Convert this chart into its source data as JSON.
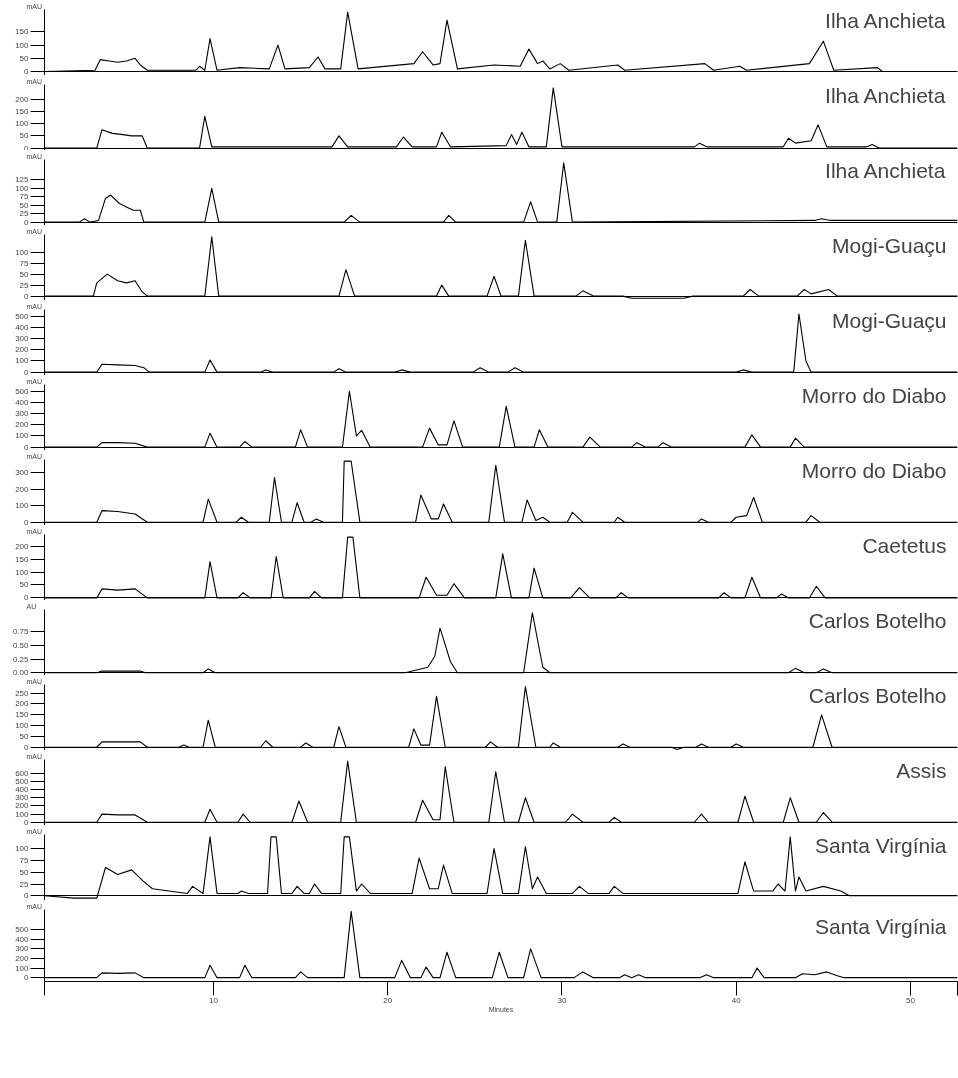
{
  "chart_data": [
    {
      "type": "line",
      "title": "Ilha Anchieta",
      "ylabel": "mAU",
      "xlim": [
        0.3,
        52.7
      ],
      "ylim": [
        -15,
        235
      ],
      "yticks": [
        0,
        50,
        100,
        150
      ],
      "tick_labels": "y",
      "color": "#000000",
      "x": [
        0.3,
        3.2,
        3.5,
        4.0,
        4.5,
        5.0,
        5.5,
        5.8,
        6.2,
        9.0,
        9.2,
        9.5,
        9.8,
        10.2,
        11.5,
        13.2,
        13.7,
        14.1,
        15.5,
        16.0,
        16.4,
        17.3,
        17.7,
        18.3,
        21.5,
        22.0,
        22.6,
        23.0,
        23.4,
        24.0,
        26.1,
        27.6,
        28.1,
        28.6,
        28.9,
        29.3,
        29.9,
        30.4,
        33.2,
        33.6,
        38.2,
        38.7,
        40.2,
        40.6,
        44.2,
        45.0,
        45.6,
        48.1,
        48.4,
        52.7
      ],
      "values": [
        0,
        5,
        45,
        40,
        35,
        40,
        50,
        25,
        5,
        5,
        20,
        5,
        125,
        5,
        15,
        10,
        100,
        10,
        15,
        55,
        10,
        10,
        225,
        10,
        30,
        75,
        25,
        30,
        195,
        10,
        25,
        20,
        85,
        30,
        40,
        10,
        30,
        5,
        25,
        5,
        30,
        5,
        20,
        5,
        30,
        115,
        5,
        15,
        0,
        0
      ]
    },
    {
      "type": "line",
      "title": "Ilha Anchieta",
      "ylabel": "mAU",
      "xlim": [
        0.3,
        52.7
      ],
      "ylim": [
        -10,
        260
      ],
      "yticks": [
        0,
        50,
        100,
        150,
        200
      ],
      "tick_labels": "y",
      "color": "#000000",
      "x": [
        0.3,
        3.3,
        3.6,
        4.2,
        4.8,
        5.3,
        5.9,
        6.2,
        9.2,
        9.5,
        9.9,
        16.8,
        17.2,
        17.7,
        20.5,
        20.9,
        21.4,
        22.8,
        23.1,
        23.6,
        26.8,
        27.1,
        27.4,
        27.7,
        28.1,
        29.1,
        29.5,
        30.0,
        37.6,
        37.9,
        38.3,
        42.7,
        43.0,
        43.4,
        44.3,
        44.7,
        45.2,
        47.5,
        47.8,
        48.2,
        52.7
      ],
      "values": [
        0,
        0,
        75,
        60,
        55,
        50,
        50,
        0,
        0,
        130,
        5,
        5,
        50,
        5,
        5,
        45,
        5,
        5,
        65,
        5,
        10,
        55,
        15,
        65,
        5,
        5,
        246,
        5,
        5,
        20,
        5,
        5,
        40,
        20,
        30,
        95,
        5,
        5,
        15,
        0,
        0
      ]
    },
    {
      "type": "line",
      "title": "Ilha Anchieta",
      "ylabel": "mAU",
      "xlim": [
        0.3,
        52.7
      ],
      "ylim": [
        -10,
        185
      ],
      "yticks": [
        0,
        25,
        50,
        75,
        100,
        125
      ],
      "tick_labels": "y",
      "color": "#000000",
      "x": [
        0.3,
        2.3,
        2.6,
        2.9,
        3.4,
        3.8,
        4.1,
        4.6,
        5.0,
        5.4,
        5.8,
        6.0,
        9.5,
        9.9,
        10.3,
        17.5,
        17.9,
        18.4,
        23.2,
        23.5,
        23.9,
        27.8,
        28.2,
        28.6,
        29.7,
        30.1,
        30.6,
        44.5,
        44.9,
        45.4,
        52.7
      ],
      "values": [
        0,
        0,
        10,
        0,
        5,
        70,
        80,
        55,
        45,
        35,
        35,
        0,
        0,
        100,
        0,
        0,
        20,
        0,
        0,
        20,
        0,
        0,
        60,
        0,
        0,
        175,
        0,
        5,
        10,
        5,
        5
      ]
    },
    {
      "type": "line",
      "title": "Mogi-Guaçu",
      "ylabel": "mAU",
      "xlim": [
        0.3,
        52.7
      ],
      "ylim": [
        -10,
        140
      ],
      "yticks": [
        0,
        25,
        50,
        75,
        100
      ],
      "tick_labels": "y",
      "color": "#000000",
      "x": [
        0.3,
        3.1,
        3.3,
        3.9,
        4.5,
        5.0,
        5.5,
        5.9,
        6.2,
        9.5,
        9.9,
        10.3,
        17.2,
        17.6,
        18.1,
        22.8,
        23.1,
        23.5,
        25.7,
        26.1,
        26.5,
        27.5,
        27.9,
        28.4,
        30.8,
        31.2,
        31.8,
        33.5,
        34.0,
        37.0,
        37.5,
        40.4,
        40.8,
        41.3,
        43.5,
        43.9,
        44.3,
        45.3,
        45.8,
        52.7
      ],
      "values": [
        0,
        0,
        30,
        50,
        35,
        30,
        35,
        10,
        0,
        0,
        135,
        0,
        0,
        60,
        0,
        0,
        25,
        0,
        0,
        45,
        0,
        0,
        127,
        0,
        0,
        12,
        0,
        0,
        -5,
        -5,
        0,
        0,
        15,
        0,
        0,
        15,
        5,
        15,
        0,
        0
      ]
    },
    {
      "type": "line",
      "title": "Mogi-Guaçu",
      "ylabel": "mAU",
      "xlim": [
        0.3,
        52.7
      ],
      "ylim": [
        -30,
        560
      ],
      "yticks": [
        0,
        100,
        200,
        300,
        400,
        500
      ],
      "tick_labels": "y",
      "color": "#000000",
      "x": [
        0.3,
        3.3,
        3.6,
        4.5,
        5.5,
        6.0,
        6.3,
        9.5,
        9.8,
        10.2,
        12.7,
        13.0,
        13.4,
        16.9,
        17.2,
        17.6,
        20.4,
        20.8,
        21.3,
        24.9,
        25.3,
        25.8,
        26.9,
        27.3,
        27.8,
        40.0,
        40.4,
        40.9,
        43.3,
        43.6,
        44.0,
        44.3,
        52.7
      ],
      "values": [
        0,
        0,
        70,
        65,
        60,
        40,
        0,
        0,
        108,
        0,
        0,
        20,
        0,
        0,
        30,
        0,
        0,
        20,
        0,
        0,
        40,
        0,
        0,
        40,
        0,
        0,
        20,
        0,
        0,
        520,
        100,
        0,
        0
      ]
    },
    {
      "type": "line",
      "title": "Morro do Diabo",
      "ylabel": "mAU",
      "xlim": [
        0.3,
        52.7
      ],
      "ylim": [
        -30,
        560
      ],
      "yticks": [
        0,
        100,
        200,
        300,
        400,
        500
      ],
      "tick_labels": "y",
      "color": "#000000",
      "x": [
        0.3,
        3.3,
        3.6,
        4.5,
        5.5,
        6.2,
        9.5,
        9.8,
        10.2,
        11.5,
        11.8,
        12.2,
        14.7,
        15.0,
        15.4,
        17.4,
        17.8,
        18.2,
        18.5,
        19.0,
        22.0,
        22.4,
        22.9,
        23.4,
        23.8,
        24.3,
        26.4,
        26.8,
        27.3,
        28.4,
        28.7,
        29.2,
        31.2,
        31.6,
        32.2,
        34.0,
        34.3,
        34.8,
        35.5,
        35.8,
        36.3,
        40.5,
        40.9,
        41.4,
        43.1,
        43.4,
        43.9,
        52.7
      ],
      "values": [
        0,
        0,
        40,
        40,
        35,
        0,
        0,
        125,
        0,
        0,
        50,
        0,
        0,
        155,
        0,
        0,
        500,
        100,
        150,
        0,
        0,
        170,
        20,
        20,
        235,
        0,
        0,
        365,
        0,
        0,
        155,
        0,
        0,
        90,
        0,
        0,
        40,
        0,
        0,
        40,
        0,
        0,
        110,
        0,
        0,
        80,
        0,
        0
      ]
    },
    {
      "type": "line",
      "title": "Morro do Diabo",
      "ylabel": "mAU",
      "xlim": [
        0.3,
        52.7
      ],
      "ylim": [
        -20,
        380
      ],
      "yticks": [
        0,
        100,
        200,
        300
      ],
      "tick_labels": "y",
      "color": "#000000",
      "x": [
        0.3,
        3.3,
        3.6,
        4.5,
        5.5,
        6.2,
        9.4,
        9.7,
        10.2,
        11.3,
        11.6,
        12.0,
        13.2,
        13.5,
        13.9,
        14.5,
        14.8,
        15.2,
        15.6,
        15.9,
        16.3,
        17.4,
        17.5,
        17.9,
        18.4,
        21.6,
        21.9,
        22.5,
        22.9,
        23.2,
        23.7,
        25.8,
        26.2,
        26.7,
        27.7,
        28.0,
        28.5,
        28.9,
        29.3,
        30.3,
        30.6,
        31.2,
        33.0,
        33.2,
        33.6,
        37.8,
        38.0,
        38.4,
        39.7,
        40.0,
        40.6,
        41.0,
        41.5,
        44.0,
        44.3,
        44.8,
        52.7
      ],
      "values": [
        0,
        0,
        70,
        65,
        50,
        0,
        0,
        140,
        0,
        0,
        30,
        0,
        0,
        270,
        0,
        0,
        118,
        0,
        0,
        20,
        0,
        0,
        370,
        370,
        0,
        0,
        165,
        20,
        20,
        110,
        0,
        0,
        345,
        0,
        0,
        135,
        10,
        30,
        0,
        0,
        60,
        0,
        0,
        30,
        0,
        0,
        20,
        0,
        0,
        30,
        40,
        150,
        0,
        0,
        40,
        0,
        0
      ]
    },
    {
      "type": "line",
      "title": "Caetetus",
      "ylabel": "mAU",
      "xlim": [
        0.3,
        52.7
      ],
      "ylim": [
        -10,
        245
      ],
      "yticks": [
        0,
        50,
        100,
        150,
        200
      ],
      "tick_labels": "y",
      "color": "#000000",
      "x": [
        0.3,
        3.3,
        3.6,
        4.5,
        5.5,
        6.2,
        9.5,
        9.8,
        10.2,
        11.4,
        11.7,
        12.1,
        13.3,
        13.6,
        14.0,
        15.5,
        15.8,
        16.2,
        17.4,
        17.7,
        18.0,
        18.4,
        21.8,
        22.2,
        22.8,
        23.4,
        23.8,
        24.4,
        26.2,
        26.6,
        27.1,
        28.1,
        28.4,
        28.9,
        30.5,
        31.0,
        31.6,
        33.1,
        33.4,
        33.8,
        39.0,
        39.3,
        39.7,
        40.5,
        40.9,
        41.4,
        42.3,
        42.6,
        43.0,
        44.2,
        44.6,
        45.1,
        52.7
      ],
      "values": [
        0,
        0,
        35,
        30,
        35,
        0,
        0,
        140,
        0,
        0,
        20,
        0,
        0,
        160,
        0,
        0,
        25,
        0,
        0,
        235,
        235,
        0,
        0,
        80,
        10,
        10,
        55,
        0,
        0,
        170,
        0,
        0,
        115,
        0,
        0,
        40,
        0,
        0,
        20,
        0,
        0,
        20,
        0,
        0,
        80,
        0,
        0,
        15,
        0,
        0,
        45,
        0,
        0
      ]
    },
    {
      "type": "line",
      "title": "Carlos Botelho",
      "ylabel": "AU",
      "xlim": [
        0.3,
        52.7
      ],
      "ylim": [
        -0.05,
        1.15
      ],
      "yticks": [
        {
          "value": 0,
          "label": "0.00"
        },
        {
          "value": 0.25,
          "label": "0.25"
        },
        {
          "value": 0.5,
          "label": "0.50"
        },
        {
          "value": 0.75,
          "label": "0.75"
        }
      ],
      "tick_labels": "y",
      "color": "#000000",
      "x": [
        0.3,
        3.3,
        3.6,
        5.8,
        6.1,
        9.4,
        9.7,
        10.1,
        21.0,
        22.3,
        22.7,
        23.0,
        23.6,
        24.0,
        27.8,
        28.3,
        28.9,
        29.3,
        43.0,
        43.4,
        43.9,
        44.6,
        45.0,
        45.5,
        52.7
      ],
      "values": [
        0,
        0,
        0.03,
        0.03,
        0,
        0,
        0.07,
        0,
        0,
        0.1,
        0.3,
        0.81,
        0.2,
        0,
        0,
        1.09,
        0.1,
        0,
        0,
        0.08,
        0,
        0,
        0.07,
        0,
        0
      ]
    },
    {
      "type": "line",
      "title": "Carlos Botelho",
      "ylabel": "mAU",
      "xlim": [
        0.3,
        52.7
      ],
      "ylim": [
        -15,
        290
      ],
      "yticks": [
        0,
        50,
        100,
        150,
        200,
        250
      ],
      "tick_labels": "y",
      "color": "#000000",
      "x": [
        0.3,
        3.3,
        3.6,
        5.8,
        6.2,
        8.0,
        8.3,
        8.6,
        9.4,
        9.7,
        10.1,
        12.7,
        13.0,
        13.4,
        15.0,
        15.3,
        15.7,
        16.9,
        17.2,
        17.6,
        21.2,
        21.5,
        21.9,
        22.4,
        22.8,
        23.3,
        25.6,
        25.9,
        26.3,
        27.5,
        27.9,
        28.5,
        29.3,
        29.5,
        29.9,
        33.2,
        33.5,
        33.9,
        36.3,
        36.6,
        37.0,
        37.7,
        38.0,
        38.4,
        39.7,
        40.0,
        40.4,
        44.4,
        44.9,
        45.5,
        52.7
      ],
      "values": [
        0,
        0,
        25,
        25,
        0,
        0,
        10,
        0,
        0,
        125,
        0,
        0,
        30,
        0,
        0,
        20,
        0,
        0,
        95,
        0,
        0,
        85,
        10,
        10,
        235,
        0,
        0,
        25,
        0,
        0,
        280,
        0,
        0,
        20,
        0,
        0,
        15,
        0,
        0,
        -10,
        0,
        0,
        15,
        0,
        0,
        15,
        0,
        0,
        150,
        0,
        0
      ]
    },
    {
      "type": "line",
      "title": "Assis",
      "ylabel": "mAU",
      "xlim": [
        0.3,
        52.7
      ],
      "ylim": [
        -40,
        770
      ],
      "yticks": [
        0,
        100,
        200,
        300,
        400,
        500,
        600
      ],
      "tick_labels": "y",
      "color": "#000000",
      "x": [
        0.3,
        3.3,
        3.6,
        4.5,
        5.5,
        6.2,
        9.5,
        9.8,
        10.2,
        11.4,
        11.7,
        12.1,
        14.5,
        14.9,
        15.4,
        17.3,
        17.7,
        18.2,
        21.6,
        22.0,
        22.6,
        23.0,
        23.3,
        23.8,
        25.8,
        26.2,
        26.7,
        27.5,
        27.9,
        28.4,
        30.2,
        30.6,
        31.2,
        32.7,
        33.0,
        33.4,
        37.6,
        38.0,
        38.4,
        40.1,
        40.5,
        41.0,
        42.7,
        43.1,
        43.6,
        44.6,
        45.0,
        45.5,
        52.7
      ],
      "values": [
        0,
        0,
        100,
        90,
        90,
        0,
        0,
        160,
        0,
        0,
        100,
        0,
        0,
        260,
        0,
        0,
        750,
        0,
        0,
        270,
        30,
        30,
        680,
        0,
        0,
        620,
        0,
        0,
        300,
        0,
        0,
        100,
        0,
        0,
        60,
        0,
        0,
        100,
        0,
        0,
        320,
        0,
        0,
        300,
        0,
        0,
        120,
        0,
        0
      ]
    },
    {
      "type": "line",
      "title": "Santa Virgínia",
      "ylabel": "mAU",
      "xlim": [
        0.3,
        52.7
      ],
      "ylim": [
        -10,
        130
      ],
      "yticks": [
        0,
        25,
        50,
        75,
        100
      ],
      "tick_labels": "y",
      "color": "#000000",
      "x": [
        0.3,
        2.0,
        3.3,
        3.8,
        4.5,
        5.3,
        6.0,
        6.5,
        8.5,
        8.8,
        9.4,
        9.8,
        10.2,
        11.4,
        11.6,
        12.0,
        13.1,
        13.3,
        13.6,
        13.9,
        14.5,
        14.8,
        15.2,
        15.5,
        15.8,
        16.2,
        17.3,
        17.5,
        17.8,
        18.2,
        18.5,
        19.0,
        21.4,
        21.8,
        22.4,
        22.9,
        23.2,
        23.7,
        25.7,
        26.1,
        26.6,
        27.5,
        27.9,
        28.3,
        28.6,
        29.1,
        30.6,
        31.0,
        31.5,
        32.7,
        33.0,
        33.5,
        40.1,
        40.5,
        41.0,
        42.1,
        42.4,
        42.8,
        43.1,
        43.4,
        43.6,
        44.0,
        45.0,
        46.0,
        46.5,
        52.7
      ],
      "values": [
        0,
        -5,
        -5,
        60,
        45,
        55,
        30,
        15,
        5,
        20,
        5,
        125,
        5,
        5,
        10,
        5,
        5,
        125,
        125,
        5,
        5,
        20,
        5,
        5,
        25,
        5,
        5,
        125,
        125,
        10,
        25,
        5,
        5,
        80,
        15,
        15,
        65,
        5,
        5,
        100,
        5,
        5,
        104,
        15,
        40,
        5,
        5,
        20,
        5,
        5,
        20,
        5,
        5,
        72,
        10,
        10,
        25,
        10,
        125,
        10,
        40,
        10,
        20,
        10,
        0,
        0
      ]
    },
    {
      "type": "line",
      "title": "Santa Virgínia",
      "ylabel": "mAU",
      "xlabel": "Minutes",
      "xlim": [
        0.3,
        52.7
      ],
      "ylim": [
        -40,
        710
      ],
      "yticks": [
        0,
        100,
        200,
        300,
        400,
        500
      ],
      "xticks": [
        {
          "value": 0.3,
          "label": null
        },
        10,
        20,
        30,
        40,
        50,
        {
          "value": 52.7,
          "label": null
        }
      ],
      "color": "#000000",
      "x": [
        0.3,
        3.3,
        3.6,
        4.5,
        5.5,
        6.0,
        9.5,
        9.8,
        10.2,
        11.5,
        11.8,
        12.2,
        14.7,
        15.0,
        15.4,
        17.5,
        17.9,
        18.4,
        20.4,
        20.8,
        21.3,
        21.9,
        22.2,
        22.6,
        23.0,
        23.4,
        23.9,
        26.0,
        26.4,
        26.9,
        27.8,
        28.2,
        28.8,
        30.7,
        31.2,
        31.8,
        33.3,
        33.6,
        34.0,
        34.4,
        34.8,
        37.9,
        38.3,
        38.7,
        40.9,
        41.2,
        41.6,
        43.4,
        43.8,
        44.5,
        45.2,
        45.8,
        46.2,
        52.7
      ],
      "values": [
        0,
        0,
        50,
        45,
        50,
        0,
        0,
        130,
        0,
        0,
        130,
        0,
        0,
        60,
        0,
        0,
        690,
        0,
        0,
        180,
        0,
        0,
        110,
        0,
        0,
        265,
        0,
        0,
        265,
        0,
        0,
        300,
        0,
        0,
        60,
        0,
        0,
        30,
        0,
        30,
        0,
        0,
        30,
        0,
        0,
        100,
        0,
        0,
        40,
        30,
        60,
        20,
        0,
        0
      ]
    }
  ]
}
